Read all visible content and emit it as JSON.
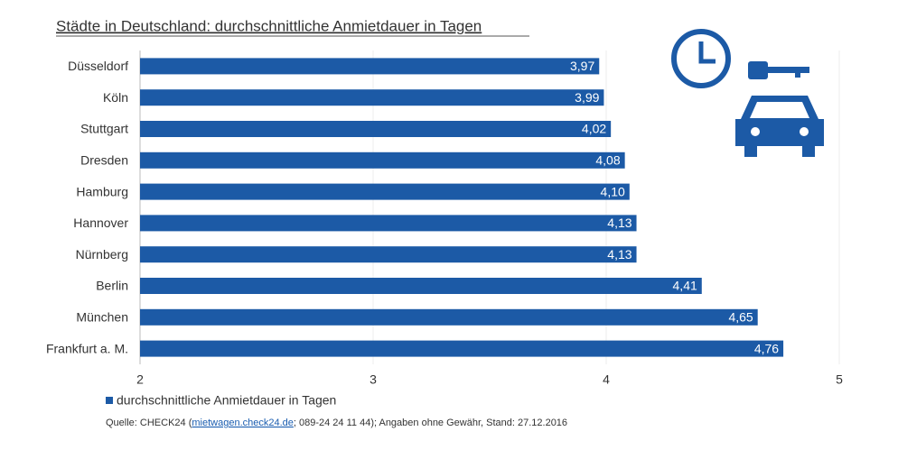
{
  "chart_data": {
    "type": "barh",
    "title": "Städte in Deutschland: durchschnittliche Anmietdauer in Tagen",
    "categories": [
      "Düsseldorf",
      "Köln",
      "Stuttgart",
      "Dresden",
      "Hamburg",
      "Hannover",
      "Nürnberg",
      "Berlin",
      "München",
      "Frankfurt a. M."
    ],
    "series": [
      {
        "name": "durchschnittliche Anmietdauer in Tagen",
        "color": "#1c5aa6",
        "values": [
          3.97,
          3.99,
          4.02,
          4.08,
          4.1,
          4.13,
          4.13,
          4.41,
          4.65,
          4.76
        ],
        "value_labels": [
          "3,97",
          "3,99",
          "4,02",
          "4,08",
          "4,10",
          "4,13",
          "4,13",
          "4,41",
          "4,65",
          "4,76"
        ]
      }
    ],
    "xlim": [
      2,
      5
    ],
    "xticks": [
      2,
      3,
      4,
      5
    ],
    "grid": true,
    "source": {
      "before": "Quelle: CHECK24 (",
      "link": "mietwagen.check24.de",
      "after": "; 089-24 24 11 44); Angaben ohne Gewähr, Stand: 27.12.2016"
    }
  }
}
